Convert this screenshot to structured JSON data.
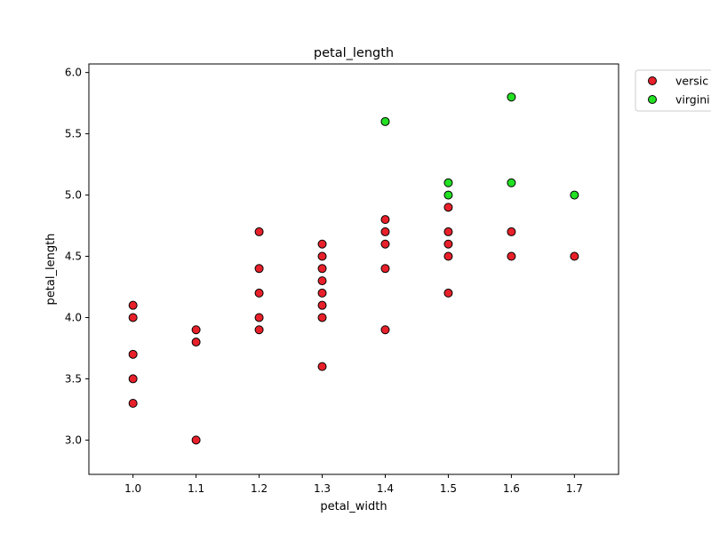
{
  "chart_data": {
    "type": "scatter",
    "title": "petal_length",
    "xlabel": "petal_width",
    "ylabel": "petal_length",
    "xlim": [
      0.93,
      1.77
    ],
    "ylim": [
      2.72,
      6.07
    ],
    "xticks": [
      "1.0",
      "1.1",
      "1.2",
      "1.3",
      "1.4",
      "1.5",
      "1.6",
      "1.7"
    ],
    "yticks": [
      "3.0",
      "3.5",
      "4.0",
      "4.5",
      "5.0",
      "5.5",
      "6.0"
    ],
    "grid": false,
    "legend_position": "outside top-right",
    "series": [
      {
        "name": "versic",
        "color": "#e8202a",
        "points": [
          [
            1.0,
            3.3
          ],
          [
            1.0,
            3.5
          ],
          [
            1.0,
            3.7
          ],
          [
            1.0,
            4.0
          ],
          [
            1.0,
            4.1
          ],
          [
            1.1,
            3.0
          ],
          [
            1.1,
            3.8
          ],
          [
            1.1,
            3.9
          ],
          [
            1.2,
            3.9
          ],
          [
            1.2,
            4.0
          ],
          [
            1.2,
            4.2
          ],
          [
            1.2,
            4.4
          ],
          [
            1.2,
            4.7
          ],
          [
            1.3,
            3.6
          ],
          [
            1.3,
            4.0
          ],
          [
            1.3,
            4.1
          ],
          [
            1.3,
            4.2
          ],
          [
            1.3,
            4.3
          ],
          [
            1.3,
            4.4
          ],
          [
            1.3,
            4.5
          ],
          [
            1.3,
            4.6
          ],
          [
            1.4,
            3.9
          ],
          [
            1.4,
            4.4
          ],
          [
            1.4,
            4.6
          ],
          [
            1.4,
            4.7
          ],
          [
            1.4,
            4.8
          ],
          [
            1.5,
            4.2
          ],
          [
            1.5,
            4.5
          ],
          [
            1.5,
            4.6
          ],
          [
            1.5,
            4.7
          ],
          [
            1.5,
            4.9
          ],
          [
            1.6,
            4.5
          ],
          [
            1.6,
            4.7
          ],
          [
            1.7,
            4.5
          ]
        ]
      },
      {
        "name": "virgini",
        "color": "#22e022",
        "points": [
          [
            1.4,
            5.6
          ],
          [
            1.5,
            5.0
          ],
          [
            1.5,
            5.1
          ],
          [
            1.6,
            5.1
          ],
          [
            1.6,
            5.8
          ],
          [
            1.7,
            5.0
          ]
        ]
      }
    ]
  }
}
